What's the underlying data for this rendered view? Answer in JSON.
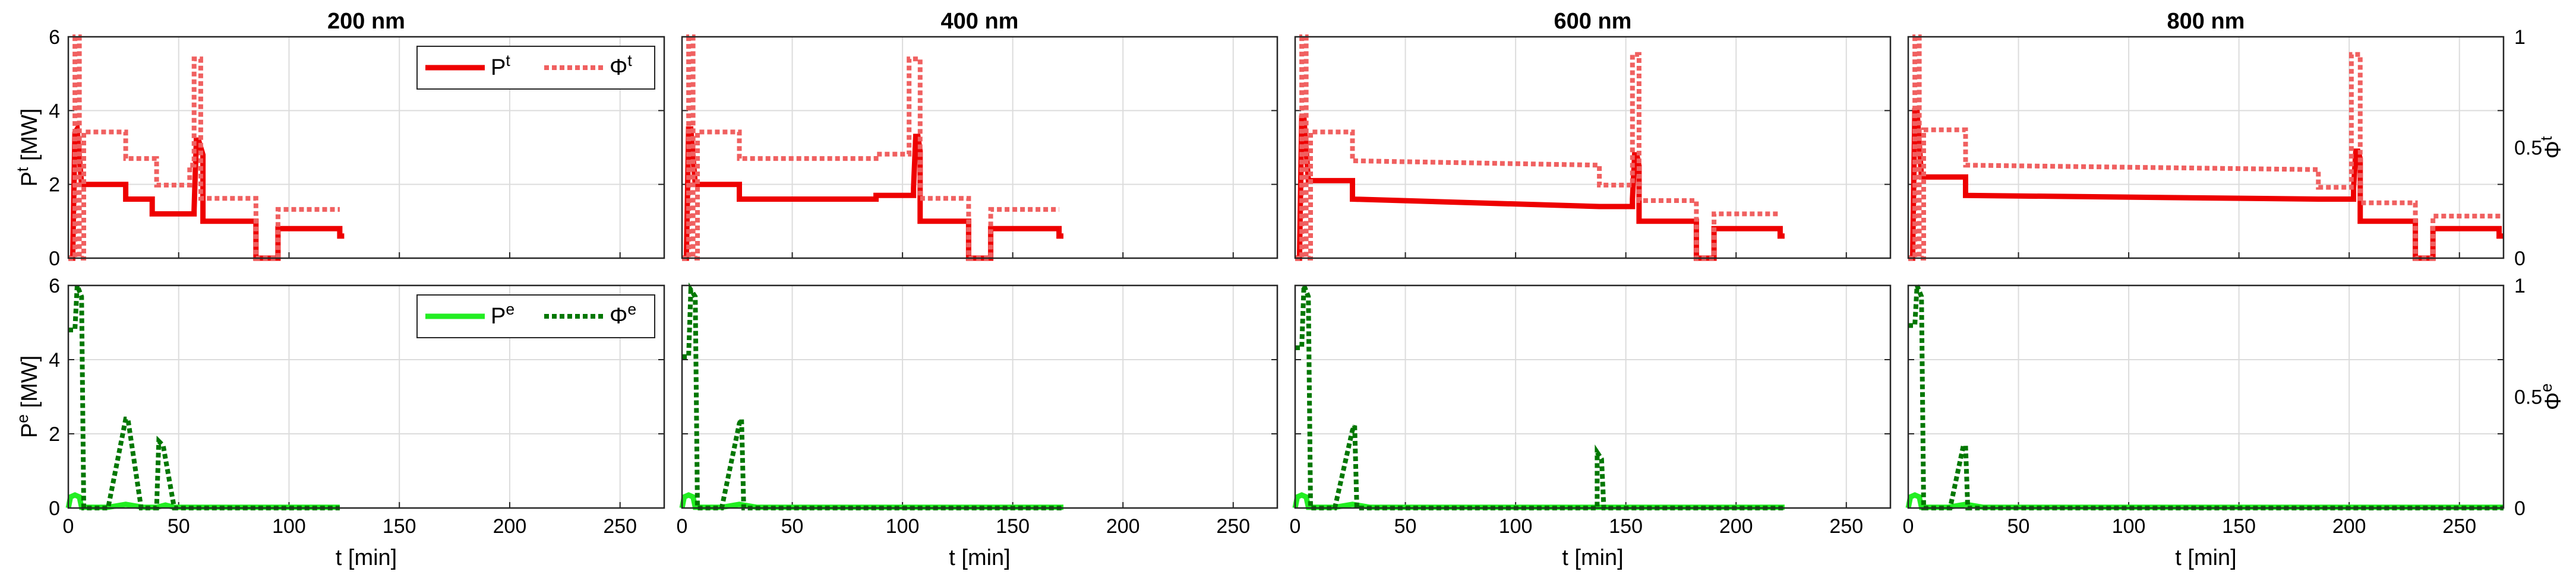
{
  "chart_data": [
    {
      "type": "line",
      "title": "200 nm",
      "xlabel": "t [min]",
      "xlim": [
        0,
        270
      ],
      "xticks": [
        "0",
        "50",
        "100",
        "150",
        "200",
        "250"
      ],
      "top": {
        "ylabel_left": "P^t [MW]",
        "ylim": [
          0,
          6
        ],
        "yticks": [
          "0",
          "2",
          "4",
          "6"
        ],
        "legend": [
          "P^t",
          "Φ^t"
        ],
        "legend_position": "top-right",
        "series": [
          {
            "name": "P^t",
            "axis": "left",
            "color": "#ee0000",
            "style": "solid",
            "x": [
              0,
              2,
              3,
              4,
              6,
              26,
              26,
              38,
              38,
              57,
              57,
              58,
              59,
              61,
              61,
              85,
              85,
              95,
              95,
              123,
              123,
              125
            ],
            "y": [
              0,
              0,
              3.4,
              3.5,
              2.0,
              2.0,
              1.6,
              1.6,
              1.2,
              1.2,
              1.3,
              3.2,
              3.2,
              2.8,
              1.0,
              1.0,
              0,
              0,
              0.8,
              0.8,
              0.6,
              0.6
            ]
          },
          {
            "name": "Φ^t",
            "axis": "right",
            "color": "#f06060",
            "style": "dotted",
            "x": [
              0,
              3,
              3,
              5,
              5,
              7,
              7,
              26,
              26,
              40,
              40,
              55,
              55,
              57,
              57,
              60,
              60,
              85,
              85,
              95,
              95,
              123
            ],
            "y": [
              0,
              0,
              1.0,
              1.0,
              0,
              0,
              0.57,
              0.57,
              0.45,
              0.45,
              0.33,
              0.33,
              0.42,
              0.42,
              0.9,
              0.9,
              0.27,
              0.27,
              0,
              0,
              0.22,
              0.22
            ]
          }
        ]
      },
      "bottom": {
        "ylabel_left": "P^e [MW]",
        "ylim": [
          0,
          6
        ],
        "yticks": [
          "0",
          "2",
          "4",
          "6"
        ],
        "legend": [
          "P^e",
          "Φ^e"
        ],
        "legend_position": "top-right",
        "series": [
          {
            "name": "P^e",
            "axis": "left",
            "color": "#22ee22",
            "style": "solid",
            "x": [
              0,
              1,
              3,
              5,
              6,
              18,
              26,
              34,
              40,
              44,
              48,
              123
            ],
            "y": [
              0,
              0.3,
              0.35,
              0.3,
              0.02,
              0.02,
              0.1,
              0.02,
              0.02,
              0.08,
              0.02,
              0.02
            ]
          },
          {
            "name": "Φ^e",
            "axis": "right",
            "color": "#007700",
            "style": "dotted",
            "x": [
              0,
              3,
              4,
              6,
              7,
              18,
              26,
              27,
              33,
              40,
              41,
              43,
              48,
              123
            ],
            "y": [
              0.8,
              0.8,
              1.0,
              0.95,
              0,
              0,
              0.4,
              0.4,
              0,
              0,
              0.3,
              0.28,
              0,
              0
            ]
          }
        ]
      }
    },
    {
      "type": "line",
      "title": "400 nm",
      "xlabel": "t [min]",
      "xlim": [
        0,
        270
      ],
      "xticks": [
        "0",
        "50",
        "100",
        "150",
        "200",
        "250"
      ],
      "top": {
        "ylim": [
          0,
          6
        ],
        "yticks": [
          "0",
          "2",
          "4",
          "6"
        ],
        "series": [
          {
            "name": "P^t",
            "axis": "left",
            "color": "#ee0000",
            "style": "solid",
            "x": [
              0,
              2,
              3,
              4,
              6,
              26,
              26,
              88,
              88,
              105,
              105,
              106,
              107,
              108,
              108,
              130,
              130,
              140,
              140,
              171,
              171,
              173
            ],
            "y": [
              0,
              0,
              3.5,
              3.5,
              2.0,
              2.0,
              1.6,
              1.6,
              1.7,
              1.7,
              1.9,
              3.3,
              3.3,
              2.9,
              1.0,
              1.0,
              0,
              0,
              0.8,
              0.8,
              0.6,
              0.6
            ]
          },
          {
            "name": "Φ^t",
            "axis": "right",
            "color": "#f06060",
            "style": "dotted",
            "x": [
              0,
              3,
              3,
              5,
              5,
              7,
              7,
              26,
              26,
              88,
              88,
              103,
              103,
              108,
              108,
              130,
              130,
              140,
              140,
              171
            ],
            "y": [
              0,
              0,
              1.0,
              1.0,
              0,
              0,
              0.57,
              0.57,
              0.45,
              0.45,
              0.47,
              0.47,
              0.9,
              0.9,
              0.27,
              0.27,
              0,
              0,
              0.22,
              0.22
            ]
          }
        ]
      },
      "bottom": {
        "ylim": [
          0,
          6
        ],
        "yticks": [
          "0",
          "2",
          "4",
          "6"
        ],
        "series": [
          {
            "name": "P^e",
            "axis": "left",
            "color": "#22ee22",
            "style": "solid",
            "x": [
              0,
              1,
              3,
              5,
              6,
              18,
              26,
              34,
              173
            ],
            "y": [
              0,
              0.3,
              0.35,
              0.3,
              0.02,
              0.02,
              0.1,
              0.02,
              0.02
            ]
          },
          {
            "name": "Φ^e",
            "axis": "right",
            "color": "#007700",
            "style": "dotted",
            "x": [
              0,
              3,
              4,
              6,
              7,
              18,
              26,
              27,
              28,
              173
            ],
            "y": [
              0.68,
              0.68,
              0.98,
              0.95,
              0,
              0,
              0.38,
              0.4,
              0,
              0
            ]
          }
        ]
      }
    },
    {
      "type": "line",
      "title": "600 nm",
      "xlabel": "t [min]",
      "xlim": [
        0,
        270
      ],
      "xticks": [
        "0",
        "50",
        "100",
        "150",
        "200",
        "250"
      ],
      "top": {
        "ylim": [
          0,
          6
        ],
        "yticks": [
          "0",
          "2",
          "4",
          "6"
        ],
        "series": [
          {
            "name": "P^t",
            "axis": "left",
            "color": "#ee0000",
            "style": "solid",
            "x": [
              0,
              2,
              3,
              4,
              6,
              26,
              26,
              138,
              138,
              153,
              153,
              154,
              155,
              156,
              156,
              182,
              182,
              190,
              190,
              220,
              220,
              222
            ],
            "y": [
              0,
              0,
              3.8,
              3.8,
              2.1,
              2.1,
              1.6,
              1.4,
              1.4,
              1.4,
              1.6,
              2.8,
              2.8,
              2.5,
              1.0,
              1.0,
              0,
              0,
              0.8,
              0.8,
              0.6,
              0.6
            ]
          },
          {
            "name": "Φ^t",
            "axis": "right",
            "color": "#f06060",
            "style": "dotted",
            "x": [
              0,
              3,
              3,
              5,
              5,
              7,
              7,
              26,
              26,
              138,
              138,
              153,
              153,
              156,
              156,
              182,
              182,
              190,
              190,
              220
            ],
            "y": [
              0,
              0,
              1.0,
              1.0,
              0,
              0,
              0.57,
              0.57,
              0.44,
              0.42,
              0.33,
              0.33,
              0.92,
              0.92,
              0.26,
              0.26,
              0,
              0,
              0.2,
              0.2
            ]
          }
        ]
      },
      "bottom": {
        "ylim": [
          0,
          6
        ],
        "yticks": [
          "0",
          "2",
          "4",
          "6"
        ],
        "series": [
          {
            "name": "P^e",
            "axis": "left",
            "color": "#22ee22",
            "style": "solid",
            "x": [
              0,
              1,
              3,
              5,
              6,
              18,
              26,
              34,
              222
            ],
            "y": [
              0,
              0.3,
              0.35,
              0.3,
              0.02,
              0.02,
              0.1,
              0.02,
              0.02
            ]
          },
          {
            "name": "Φ^e",
            "axis": "right",
            "color": "#007700",
            "style": "dotted",
            "x": [
              0,
              3,
              4,
              6,
              7,
              18,
              26,
              27,
              28,
              137,
              137,
              139,
              140,
              222
            ],
            "y": [
              0.72,
              0.72,
              1.0,
              0.95,
              0,
              0,
              0.35,
              0.37,
              0,
              0,
              0.25,
              0.22,
              0,
              0
            ]
          }
        ]
      }
    },
    {
      "type": "line",
      "title": "800 nm",
      "xlabel": "t [min]",
      "xlim": [
        0,
        270
      ],
      "xticks": [
        "0",
        "50",
        "100",
        "150",
        "200",
        "250"
      ],
      "top": {
        "ylabel_right": "Φ^t",
        "ylim": [
          0,
          6
        ],
        "yticks": [
          "0",
          "2",
          "4",
          "6"
        ],
        "ylim_right": [
          0,
          1
        ],
        "yticks_right": [
          "0",
          "0.5",
          "1"
        ],
        "series": [
          {
            "name": "P^t",
            "axis": "left",
            "color": "#ee0000",
            "style": "solid",
            "x": [
              0,
              2,
              3,
              4,
              6,
              26,
              26,
              186,
              186,
              202,
              202,
              203,
              204,
              205,
              205,
              230,
              230,
              238,
              238,
              268,
              268,
              270
            ],
            "y": [
              0,
              0,
              4.0,
              4.0,
              2.2,
              2.2,
              1.7,
              1.6,
              1.6,
              1.6,
              1.9,
              2.9,
              2.9,
              2.7,
              1.0,
              1.0,
              0,
              0,
              0.8,
              0.8,
              0.6,
              0.6
            ]
          },
          {
            "name": "Φ^t",
            "axis": "right",
            "color": "#f06060",
            "style": "dotted",
            "x": [
              0,
              3,
              3,
              5,
              5,
              7,
              7,
              26,
              26,
              186,
              186,
              201,
              201,
              205,
              205,
              230,
              230,
              238,
              238,
              270
            ],
            "y": [
              0,
              0,
              1.0,
              1.0,
              0,
              0,
              0.58,
              0.58,
              0.42,
              0.4,
              0.32,
              0.32,
              0.92,
              0.92,
              0.25,
              0.25,
              0,
              0,
              0.19,
              0.19
            ]
          }
        ]
      },
      "bottom": {
        "ylabel_right": "Φ^e",
        "ylim": [
          0,
          6
        ],
        "yticks": [
          "0",
          "2",
          "4",
          "6"
        ],
        "ylim_right": [
          0,
          1
        ],
        "yticks_right": [
          "0",
          "0.5",
          "1"
        ],
        "series": [
          {
            "name": "P^e",
            "axis": "left",
            "color": "#22ee22",
            "style": "solid",
            "x": [
              0,
              1,
              3,
              5,
              6,
              18,
              26,
              34,
              270
            ],
            "y": [
              0,
              0.3,
              0.35,
              0.3,
              0.02,
              0.02,
              0.1,
              0.02,
              0.02
            ]
          },
          {
            "name": "Φ^e",
            "axis": "right",
            "color": "#007700",
            "style": "dotted",
            "x": [
              0,
              3,
              4,
              6,
              7,
              19,
              25,
              26,
              27,
              270
            ],
            "y": [
              0.82,
              0.82,
              1.0,
              0.95,
              0,
              0,
              0.28,
              0.28,
              0,
              0
            ]
          }
        ]
      }
    }
  ]
}
